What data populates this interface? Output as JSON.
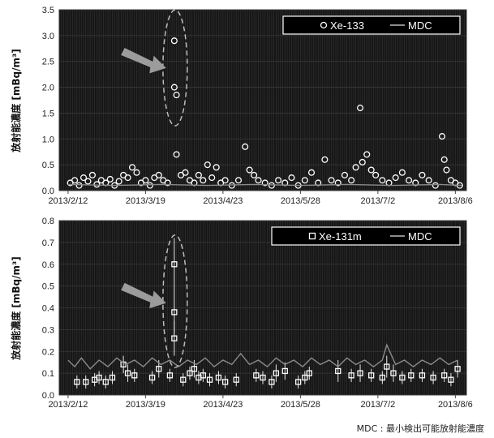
{
  "footnote": "MDC : 最小検出可能放射能濃度",
  "chart_data": [
    {
      "type": "scatter",
      "ylabel": "放射能濃度 [mBq/m³]",
      "ylim": [
        0,
        3.5
      ],
      "yticks": [
        "0.0",
        "0.5",
        "1.0",
        "1.5",
        "2.0",
        "2.5",
        "3.0",
        "3.5"
      ],
      "xlim": [
        "2013-02-08",
        "2013-08-11"
      ],
      "xticks": [
        {
          "date": "2013-02-12",
          "label": "2013/2/12"
        },
        {
          "date": "2013-03-19",
          "label": "2013/3/19"
        },
        {
          "date": "2013-04-23",
          "label": "2013/4/23"
        },
        {
          "date": "2013-05-28",
          "label": "2013/5/28"
        },
        {
          "date": "2013-07-02",
          "label": "2013/7/2"
        },
        {
          "date": "2013-08-06",
          "label": "2013/8/6"
        }
      ],
      "grid": true,
      "legend_position": "top-right",
      "annotation": "dashed ellipse and arrow around 2013/4/1–4/2 highs",
      "series": [
        {
          "name": "Xe-133",
          "marker": "circle",
          "color": "#ffffff",
          "points": [
            {
              "x": "2013-02-13",
              "y": 0.15
            },
            {
              "x": "2013-02-15",
              "y": 0.2
            },
            {
              "x": "2013-02-17",
              "y": 0.1
            },
            {
              "x": "2013-02-19",
              "y": 0.25
            },
            {
              "x": "2013-02-21",
              "y": 0.18
            },
            {
              "x": "2013-02-23",
              "y": 0.3
            },
            {
              "x": "2013-02-25",
              "y": 0.12
            },
            {
              "x": "2013-02-27",
              "y": 0.2
            },
            {
              "x": "2013-03-01",
              "y": 0.15
            },
            {
              "x": "2013-03-03",
              "y": 0.22
            },
            {
              "x": "2013-03-05",
              "y": 0.1
            },
            {
              "x": "2013-03-07",
              "y": 0.18
            },
            {
              "x": "2013-03-09",
              "y": 0.3
            },
            {
              "x": "2013-03-11",
              "y": 0.25
            },
            {
              "x": "2013-03-13",
              "y": 0.45
            },
            {
              "x": "2013-03-15",
              "y": 0.35
            },
            {
              "x": "2013-03-17",
              "y": 0.15
            },
            {
              "x": "2013-03-19",
              "y": 0.2
            },
            {
              "x": "2013-03-21",
              "y": 0.1
            },
            {
              "x": "2013-03-23",
              "y": 0.25
            },
            {
              "x": "2013-03-25",
              "y": 0.3
            },
            {
              "x": "2013-03-27",
              "y": 0.2
            },
            {
              "x": "2013-03-29",
              "y": 0.15
            },
            {
              "x": "2013-04-01",
              "y": 2.9
            },
            {
              "x": "2013-04-01",
              "y": 2.0
            },
            {
              "x": "2013-04-02",
              "y": 1.85
            },
            {
              "x": "2013-04-02",
              "y": 0.7
            },
            {
              "x": "2013-04-04",
              "y": 0.3
            },
            {
              "x": "2013-04-06",
              "y": 0.35
            },
            {
              "x": "2013-04-08",
              "y": 0.2
            },
            {
              "x": "2013-04-10",
              "y": 0.15
            },
            {
              "x": "2013-04-12",
              "y": 0.3
            },
            {
              "x": "2013-04-14",
              "y": 0.2
            },
            {
              "x": "2013-04-16",
              "y": 0.5
            },
            {
              "x": "2013-04-18",
              "y": 0.25
            },
            {
              "x": "2013-04-20",
              "y": 0.45
            },
            {
              "x": "2013-04-22",
              "y": 0.15
            },
            {
              "x": "2013-04-24",
              "y": 0.2
            },
            {
              "x": "2013-04-27",
              "y": 0.1
            },
            {
              "x": "2013-04-30",
              "y": 0.2
            },
            {
              "x": "2013-05-03",
              "y": 0.85
            },
            {
              "x": "2013-05-05",
              "y": 0.4
            },
            {
              "x": "2013-05-07",
              "y": 0.3
            },
            {
              "x": "2013-05-09",
              "y": 0.2
            },
            {
              "x": "2013-05-12",
              "y": 0.15
            },
            {
              "x": "2013-05-15",
              "y": 0.1
            },
            {
              "x": "2013-05-18",
              "y": 0.2
            },
            {
              "x": "2013-05-21",
              "y": 0.15
            },
            {
              "x": "2013-05-24",
              "y": 0.25
            },
            {
              "x": "2013-05-27",
              "y": 0.1
            },
            {
              "x": "2013-05-30",
              "y": 0.2
            },
            {
              "x": "2013-06-02",
              "y": 0.35
            },
            {
              "x": "2013-06-05",
              "y": 0.15
            },
            {
              "x": "2013-06-08",
              "y": 0.6
            },
            {
              "x": "2013-06-11",
              "y": 0.2
            },
            {
              "x": "2013-06-14",
              "y": 0.15
            },
            {
              "x": "2013-06-17",
              "y": 0.3
            },
            {
              "x": "2013-06-20",
              "y": 0.2
            },
            {
              "x": "2013-06-22",
              "y": 0.45
            },
            {
              "x": "2013-06-24",
              "y": 1.6
            },
            {
              "x": "2013-06-25",
              "y": 0.55
            },
            {
              "x": "2013-06-27",
              "y": 0.7
            },
            {
              "x": "2013-06-29",
              "y": 0.4
            },
            {
              "x": "2013-07-01",
              "y": 0.3
            },
            {
              "x": "2013-07-04",
              "y": 0.2
            },
            {
              "x": "2013-07-07",
              "y": 0.15
            },
            {
              "x": "2013-07-10",
              "y": 0.25
            },
            {
              "x": "2013-07-13",
              "y": 0.35
            },
            {
              "x": "2013-07-16",
              "y": 0.2
            },
            {
              "x": "2013-07-19",
              "y": 0.15
            },
            {
              "x": "2013-07-22",
              "y": 0.3
            },
            {
              "x": "2013-07-25",
              "y": 0.2
            },
            {
              "x": "2013-07-28",
              "y": 0.1
            },
            {
              "x": "2013-07-31",
              "y": 1.05
            },
            {
              "x": "2013-08-01",
              "y": 0.6
            },
            {
              "x": "2013-08-02",
              "y": 0.4
            },
            {
              "x": "2013-08-04",
              "y": 0.2
            },
            {
              "x": "2013-08-06",
              "y": 0.15
            },
            {
              "x": "2013-08-08",
              "y": 0.1
            }
          ]
        },
        {
          "name": "MDC",
          "marker": "line",
          "color": "#8a8a8a",
          "points": [
            {
              "x": "2013-02-12",
              "y": 0.12
            },
            {
              "x": "2013-03-05",
              "y": 0.1
            },
            {
              "x": "2013-03-26",
              "y": 0.12
            },
            {
              "x": "2013-04-16",
              "y": 0.1
            },
            {
              "x": "2013-05-07",
              "y": 0.12
            },
            {
              "x": "2013-05-28",
              "y": 0.1
            },
            {
              "x": "2013-06-18",
              "y": 0.12
            },
            {
              "x": "2013-07-09",
              "y": 0.1
            },
            {
              "x": "2013-07-30",
              "y": 0.12
            },
            {
              "x": "2013-08-09",
              "y": 0.1
            }
          ]
        }
      ]
    },
    {
      "type": "scatter",
      "ylabel": "放射能濃度 [mBq/m³]",
      "ylim": [
        0,
        0.8
      ],
      "yticks": [
        "0.0",
        "0.1",
        "0.2",
        "0.3",
        "0.4",
        "0.5",
        "0.6",
        "0.7",
        "0.8"
      ],
      "xlim": [
        "2013-02-08",
        "2013-08-11"
      ],
      "xticks": [
        {
          "date": "2013-02-12",
          "label": "2013/2/12"
        },
        {
          "date": "2013-03-19",
          "label": "2013/3/19"
        },
        {
          "date": "2013-04-23",
          "label": "2013/4/23"
        },
        {
          "date": "2013-05-28",
          "label": "2013/5/28"
        },
        {
          "date": "2013-07-02",
          "label": "2013/7/2"
        },
        {
          "date": "2013-08-06",
          "label": "2013/8/6"
        }
      ],
      "grid": true,
      "legend_position": "top-right",
      "annotation": "dashed ellipse and arrow around 2013/4/1 highs",
      "series": [
        {
          "name": "Xe-131m",
          "marker": "square",
          "color": "#ffffff",
          "points": [
            {
              "x": "2013-02-16",
              "y": 0.06,
              "err": 0.03
            },
            {
              "x": "2013-02-20",
              "y": 0.06,
              "err": 0.03
            },
            {
              "x": "2013-02-24",
              "y": 0.07,
              "err": 0.03
            },
            {
              "x": "2013-02-26",
              "y": 0.08,
              "err": 0.03
            },
            {
              "x": "2013-03-01",
              "y": 0.06,
              "err": 0.03
            },
            {
              "x": "2013-03-04",
              "y": 0.08,
              "err": 0.03
            },
            {
              "x": "2013-03-09",
              "y": 0.14,
              "err": 0.04
            },
            {
              "x": "2013-03-11",
              "y": 0.1,
              "err": 0.04
            },
            {
              "x": "2013-03-14",
              "y": 0.09,
              "err": 0.03
            },
            {
              "x": "2013-03-22",
              "y": 0.08,
              "err": 0.03
            },
            {
              "x": "2013-03-25",
              "y": 0.12,
              "err": 0.04
            },
            {
              "x": "2013-03-30",
              "y": 0.09,
              "err": 0.03
            },
            {
              "x": "2013-04-01",
              "y": 0.6,
              "err": 0.12
            },
            {
              "x": "2013-04-01",
              "y": 0.38,
              "err": 0.1
            },
            {
              "x": "2013-04-01",
              "y": 0.26,
              "err": 0.08
            },
            {
              "x": "2013-04-05",
              "y": 0.07,
              "err": 0.03
            },
            {
              "x": "2013-04-08",
              "y": 0.1,
              "err": 0.03
            },
            {
              "x": "2013-04-10",
              "y": 0.12,
              "err": 0.04
            },
            {
              "x": "2013-04-12",
              "y": 0.08,
              "err": 0.03
            },
            {
              "x": "2013-04-14",
              "y": 0.09,
              "err": 0.03
            },
            {
              "x": "2013-04-17",
              "y": 0.07,
              "err": 0.03
            },
            {
              "x": "2013-04-21",
              "y": 0.08,
              "err": 0.03
            },
            {
              "x": "2013-04-24",
              "y": 0.06,
              "err": 0.03
            },
            {
              "x": "2013-04-29",
              "y": 0.07,
              "err": 0.03
            },
            {
              "x": "2013-05-08",
              "y": 0.09,
              "err": 0.03
            },
            {
              "x": "2013-05-11",
              "y": 0.08,
              "err": 0.03
            },
            {
              "x": "2013-05-15",
              "y": 0.06,
              "err": 0.03
            },
            {
              "x": "2013-05-17",
              "y": 0.1,
              "err": 0.04
            },
            {
              "x": "2013-05-21",
              "y": 0.11,
              "err": 0.04
            },
            {
              "x": "2013-05-27",
              "y": 0.06,
              "err": 0.03
            },
            {
              "x": "2013-05-30",
              "y": 0.08,
              "err": 0.03
            },
            {
              "x": "2013-06-01",
              "y": 0.1,
              "err": 0.03
            },
            {
              "x": "2013-06-14",
              "y": 0.11,
              "err": 0.05
            },
            {
              "x": "2013-06-20",
              "y": 0.09,
              "err": 0.03
            },
            {
              "x": "2013-06-24",
              "y": 0.1,
              "err": 0.04
            },
            {
              "x": "2013-06-29",
              "y": 0.09,
              "err": 0.03
            },
            {
              "x": "2013-07-04",
              "y": 0.08,
              "err": 0.03
            },
            {
              "x": "2013-07-06",
              "y": 0.13,
              "err": 0.05
            },
            {
              "x": "2013-07-09",
              "y": 0.1,
              "err": 0.04
            },
            {
              "x": "2013-07-13",
              "y": 0.08,
              "err": 0.03
            },
            {
              "x": "2013-07-17",
              "y": 0.09,
              "err": 0.03
            },
            {
              "x": "2013-07-22",
              "y": 0.09,
              "err": 0.03
            },
            {
              "x": "2013-07-27",
              "y": 0.08,
              "err": 0.03
            },
            {
              "x": "2013-08-01",
              "y": 0.09,
              "err": 0.03
            },
            {
              "x": "2013-08-04",
              "y": 0.07,
              "err": 0.03
            },
            {
              "x": "2013-08-07",
              "y": 0.12,
              "err": 0.04
            }
          ]
        },
        {
          "name": "MDC",
          "marker": "line",
          "color": "#8a8a8a",
          "points": [
            {
              "x": "2013-02-12",
              "y": 0.16
            },
            {
              "x": "2013-02-15",
              "y": 0.13
            },
            {
              "x": "2013-02-18",
              "y": 0.17
            },
            {
              "x": "2013-02-22",
              "y": 0.12
            },
            {
              "x": "2013-02-26",
              "y": 0.16
            },
            {
              "x": "2013-03-02",
              "y": 0.13
            },
            {
              "x": "2013-03-06",
              "y": 0.17
            },
            {
              "x": "2013-03-10",
              "y": 0.14
            },
            {
              "x": "2013-03-14",
              "y": 0.16
            },
            {
              "x": "2013-03-18",
              "y": 0.13
            },
            {
              "x": "2013-03-22",
              "y": 0.17
            },
            {
              "x": "2013-03-26",
              "y": 0.14
            },
            {
              "x": "2013-03-30",
              "y": 0.16
            },
            {
              "x": "2013-04-03",
              "y": 0.13
            },
            {
              "x": "2013-04-07",
              "y": 0.16
            },
            {
              "x": "2013-04-11",
              "y": 0.14
            },
            {
              "x": "2013-04-15",
              "y": 0.17
            },
            {
              "x": "2013-04-19",
              "y": 0.13
            },
            {
              "x": "2013-04-23",
              "y": 0.16
            },
            {
              "x": "2013-04-27",
              "y": 0.14
            },
            {
              "x": "2013-05-01",
              "y": 0.19
            },
            {
              "x": "2013-05-05",
              "y": 0.14
            },
            {
              "x": "2013-05-09",
              "y": 0.16
            },
            {
              "x": "2013-05-13",
              "y": 0.13
            },
            {
              "x": "2013-05-17",
              "y": 0.17
            },
            {
              "x": "2013-05-21",
              "y": 0.14
            },
            {
              "x": "2013-05-25",
              "y": 0.16
            },
            {
              "x": "2013-05-29",
              "y": 0.13
            },
            {
              "x": "2013-06-02",
              "y": 0.17
            },
            {
              "x": "2013-06-06",
              "y": 0.14
            },
            {
              "x": "2013-06-10",
              "y": 0.16
            },
            {
              "x": "2013-06-14",
              "y": 0.13
            },
            {
              "x": "2013-06-18",
              "y": 0.17
            },
            {
              "x": "2013-06-22",
              "y": 0.14
            },
            {
              "x": "2013-06-26",
              "y": 0.16
            },
            {
              "x": "2013-06-30",
              "y": 0.13
            },
            {
              "x": "2013-07-04",
              "y": 0.16
            },
            {
              "x": "2013-07-06",
              "y": 0.23
            },
            {
              "x": "2013-07-10",
              "y": 0.14
            },
            {
              "x": "2013-07-14",
              "y": 0.16
            },
            {
              "x": "2013-07-18",
              "y": 0.13
            },
            {
              "x": "2013-07-22",
              "y": 0.16
            },
            {
              "x": "2013-07-26",
              "y": 0.14
            },
            {
              "x": "2013-07-30",
              "y": 0.17
            },
            {
              "x": "2013-08-03",
              "y": 0.14
            },
            {
              "x": "2013-08-07",
              "y": 0.16
            }
          ]
        }
      ]
    }
  ]
}
